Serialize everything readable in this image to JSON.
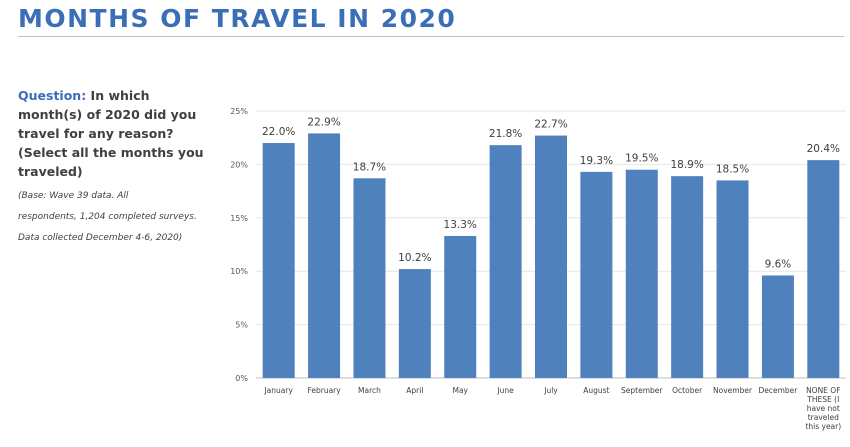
{
  "header": {
    "title": "MONTHS OF TRAVEL IN 2020"
  },
  "question": {
    "label": "Question:",
    "text": " In which month(s) of 2020 did you travel for any reason? (Select all the months you traveled)"
  },
  "base_note": {
    "lines": [
      "(Base: Wave 39 data. All",
      "respondents, 1,204 completed surveys.",
      "Data collected December 4-6, 2020)"
    ]
  },
  "colors": {
    "bar": "#4f81bd",
    "title": "#3a6fb7",
    "grid": "#e6e6e6"
  },
  "chart_data": {
    "type": "bar",
    "categories": [
      [
        "January"
      ],
      [
        "February"
      ],
      [
        "March"
      ],
      [
        "April"
      ],
      [
        "May"
      ],
      [
        "June"
      ],
      [
        "July"
      ],
      [
        "August"
      ],
      [
        "September"
      ],
      [
        "October"
      ],
      [
        "November"
      ],
      [
        "December"
      ],
      [
        "NONE OF",
        "THESE (I",
        "have not",
        "traveled",
        "this year)"
      ]
    ],
    "values": [
      22.0,
      22.9,
      18.7,
      10.2,
      13.3,
      21.8,
      22.7,
      19.3,
      19.5,
      18.9,
      18.5,
      9.6,
      20.4
    ],
    "value_labels": [
      "22.0%",
      "22.9%",
      "18.7%",
      "10.2%",
      "13.3%",
      "21.8%",
      "22.7%",
      "19.3%",
      "19.5%",
      "18.9%",
      "18.5%",
      "9.6%",
      "20.4%"
    ],
    "y_ticks": [
      0,
      5,
      10,
      15,
      20,
      25
    ],
    "y_tick_labels": [
      "0%",
      "5%",
      "10%",
      "15%",
      "20%",
      "25%"
    ],
    "ylim": [
      0,
      25
    ],
    "grid": true
  }
}
